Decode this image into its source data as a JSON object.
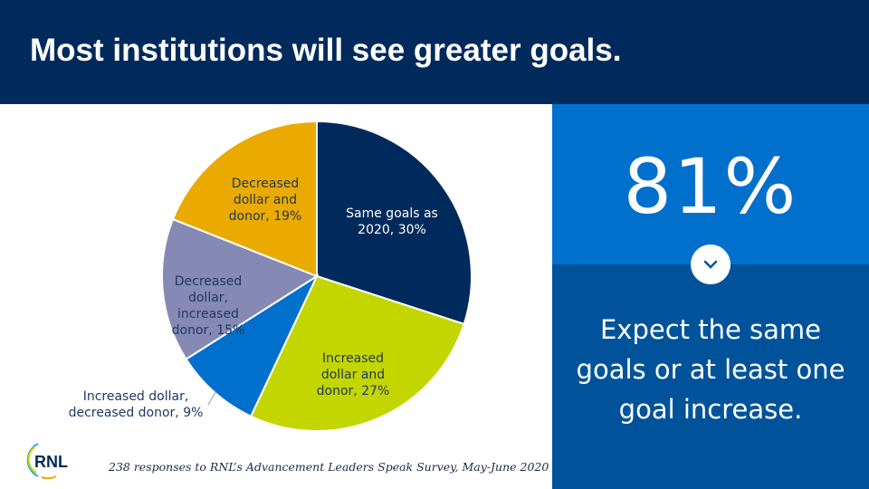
{
  "header": {
    "title": "Most institutions will see greater goals."
  },
  "stat": {
    "value": "81%",
    "lines": [
      "Expect the same",
      "goals or at least one",
      "goal increase."
    ]
  },
  "footnote": "238 responses to RNL’s Advancement Leaders Speak Survey, May-June 2020",
  "logo": {
    "text": "RNL"
  },
  "chart_data": {
    "type": "pie",
    "start": "top, clockwise",
    "slices": [
      {
        "name": "Same goals as 2020",
        "value": 30,
        "label": [
          "Same goals as",
          "2020, 30%"
        ],
        "color": "#012a5c",
        "text_color": "#ffffff"
      },
      {
        "name": "Increased dollar and donor",
        "value": 27,
        "label": [
          "Increased",
          "dollar and",
          "donor, 27%"
        ],
        "color": "#c4d600",
        "text_color": "#1f3864"
      },
      {
        "name": "Increased dollar, decreased donor",
        "value": 9,
        "label": [
          "Increased dollar,",
          "decreased donor, 9%"
        ],
        "color": "#0070cc",
        "text_color": "#1f3864"
      },
      {
        "name": "Decreased dollar, increased donor",
        "value": 15,
        "label": [
          "Decreased",
          "dollar,",
          "increased",
          "donor, 15%"
        ],
        "color": "#8789b5",
        "text_color": "#1f3864"
      },
      {
        "name": "Decreased dollar and donor",
        "value": 19,
        "label": [
          "Decreased",
          "dollar and",
          "donor, 19%"
        ],
        "color": "#eaaa00",
        "text_color": "#1f3864"
      }
    ]
  }
}
